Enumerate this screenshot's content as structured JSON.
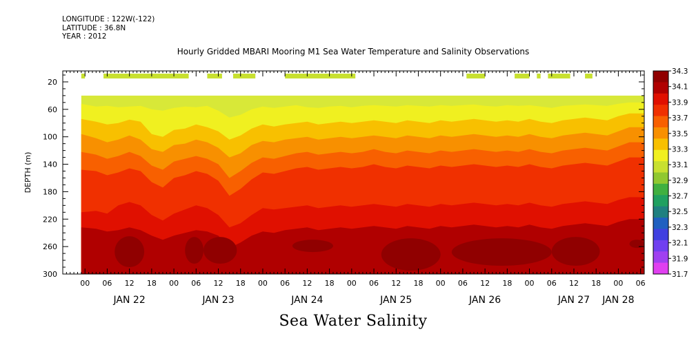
{
  "header": {
    "longitude": "LONGITUDE : 122W(-122)",
    "latitude": "LATITUDE : 36.8N",
    "year": "YEAR : 2012"
  },
  "chart_data": {
    "type": "heatmap",
    "title": "Hourly Gridded MBARI Mooring M1 Sea Water Temperature and Salinity Observations",
    "xlabel": "Sea Water Salinity",
    "ylabel": "DEPTH (m)",
    "x_range_hours": [
      -6,
      151
    ],
    "x_unit": "hours from 00 JAN 22 2012",
    "ylim": [
      300,
      4
    ],
    "y_ticks": [
      20,
      60,
      100,
      140,
      180,
      220,
      260,
      300
    ],
    "x_hour_labels": [
      "00",
      "06",
      "12",
      "18"
    ],
    "day_labels": [
      {
        "label": "JAN 22",
        "hour": 12
      },
      {
        "label": "JAN 23",
        "hour": 36
      },
      {
        "label": "JAN 24",
        "hour": 60
      },
      {
        "label": "JAN 25",
        "hour": 84
      },
      {
        "label": "JAN 26",
        "hour": 108
      },
      {
        "label": "JAN 27",
        "hour": 132
      },
      {
        "label": "JAN 28",
        "hour": 144
      }
    ],
    "colorbar": {
      "levels": [
        "31.7",
        "31.9",
        "32.1",
        "32.3",
        "32.5",
        "32.7",
        "32.9",
        "33.1",
        "33.3",
        "33.5",
        "33.7",
        "33.9",
        "34.1",
        "34.3"
      ],
      "colors": [
        "#e040f0",
        "#a040f0",
        "#7040f0",
        "#4040e0",
        "#2060c0",
        "#208080",
        "#20a060",
        "#40b040",
        "#90c830",
        "#c8e030",
        "#f0f020",
        "#f8c000",
        "#f89000",
        "#f86000",
        "#f03000",
        "#e01000",
        "#b00000",
        "#900000"
      ]
    },
    "surface_patches": [
      {
        "start": -1,
        "end": 0
      },
      {
        "start": 5,
        "end": 28
      },
      {
        "start": 33,
        "end": 37
      },
      {
        "start": 40,
        "end": 46
      },
      {
        "start": 54,
        "end": 73
      },
      {
        "start": 103,
        "end": 108
      },
      {
        "start": 116,
        "end": 120
      },
      {
        "start": 122,
        "end": 123
      },
      {
        "start": 125,
        "end": 131
      },
      {
        "start": 135,
        "end": 137
      }
    ],
    "surface_depth_range": [
      8,
      15
    ],
    "data_depth_range": [
      40,
      300
    ],
    "data_x_start_hour": -1,
    "band_series": [
      {
        "name": "33.3 top",
        "color": "#f0f020"
      },
      {
        "name": "33.5",
        "color": "#f8c000"
      },
      {
        "name": "33.7",
        "color": "#f89000"
      },
      {
        "name": "33.9",
        "color": "#f86000"
      },
      {
        "name": "34.1",
        "color": "#f03000"
      },
      {
        "name": "34.1b",
        "color": "#e01000"
      },
      {
        "name": "34.3",
        "color": "#b00000"
      }
    ],
    "band_knots_hours": [
      -1,
      3,
      6,
      9,
      12,
      15,
      18,
      21,
      24,
      27,
      30,
      33,
      36,
      39,
      42,
      45,
      48,
      51,
      54,
      57,
      60,
      63,
      66,
      69,
      72,
      75,
      78,
      81,
      84,
      87,
      90,
      93,
      96,
      99,
      102,
      105,
      108,
      111,
      114,
      117,
      120,
      123,
      126,
      129,
      132,
      135,
      138,
      141,
      144,
      147,
      151
    ],
    "band_depths": [
      [
        52,
        56,
        55,
        57,
        56,
        55,
        60,
        62,
        58,
        56,
        57,
        55,
        62,
        72,
        68,
        60,
        56,
        58,
        56,
        54,
        57,
        58,
        56,
        55,
        57,
        55,
        54,
        55,
        56,
        54,
        55,
        56,
        54,
        55,
        54,
        53,
        55,
        56,
        54,
        55,
        54,
        56,
        58,
        55,
        54,
        53,
        54,
        55,
        52,
        50,
        50
      ],
      [
        74,
        78,
        82,
        80,
        75,
        78,
        96,
        100,
        90,
        88,
        82,
        86,
        92,
        104,
        98,
        88,
        82,
        85,
        82,
        80,
        78,
        82,
        80,
        78,
        80,
        78,
        76,
        78,
        80,
        76,
        78,
        80,
        76,
        78,
        76,
        74,
        76,
        78,
        76,
        78,
        74,
        78,
        80,
        76,
        74,
        72,
        74,
        76,
        70,
        66,
        66
      ],
      [
        96,
        102,
        108,
        104,
        98,
        104,
        118,
        122,
        112,
        110,
        104,
        108,
        116,
        130,
        124,
        112,
        106,
        108,
        104,
        102,
        100,
        104,
        102,
        100,
        102,
        100,
        98,
        100,
        102,
        98,
        100,
        102,
        98,
        100,
        98,
        96,
        98,
        100,
        98,
        100,
        96,
        100,
        102,
        98,
        96,
        94,
        96,
        98,
        92,
        86,
        86
      ],
      [
        122,
        126,
        132,
        128,
        122,
        128,
        142,
        148,
        136,
        132,
        128,
        132,
        140,
        160,
        150,
        138,
        130,
        132,
        128,
        124,
        122,
        126,
        124,
        122,
        124,
        122,
        118,
        122,
        124,
        120,
        122,
        124,
        120,
        122,
        120,
        118,
        120,
        122,
        120,
        122,
        118,
        122,
        124,
        120,
        118,
        116,
        118,
        120,
        114,
        108,
        108
      ],
      [
        148,
        150,
        156,
        152,
        146,
        150,
        166,
        174,
        160,
        156,
        150,
        154,
        164,
        186,
        176,
        162,
        152,
        154,
        150,
        146,
        144,
        148,
        146,
        144,
        146,
        144,
        140,
        144,
        146,
        142,
        144,
        146,
        142,
        144,
        142,
        140,
        142,
        144,
        142,
        144,
        140,
        144,
        146,
        142,
        140,
        138,
        140,
        142,
        136,
        130,
        130
      ],
      [
        210,
        208,
        212,
        200,
        195,
        200,
        214,
        222,
        212,
        206,
        200,
        204,
        214,
        232,
        226,
        214,
        204,
        206,
        204,
        202,
        200,
        204,
        202,
        200,
        202,
        200,
        198,
        200,
        202,
        198,
        200,
        202,
        198,
        200,
        198,
        196,
        198,
        200,
        198,
        200,
        196,
        200,
        202,
        198,
        196,
        194,
        196,
        198,
        192,
        188,
        188
      ],
      [
        232,
        234,
        238,
        236,
        232,
        236,
        244,
        250,
        244,
        240,
        236,
        238,
        244,
        262,
        254,
        244,
        238,
        240,
        236,
        234,
        232,
        236,
        234,
        232,
        234,
        232,
        230,
        232,
        234,
        230,
        232,
        234,
        230,
        232,
        230,
        228,
        230,
        232,
        230,
        232,
        228,
        232,
        234,
        230,
        228,
        226,
        228,
        230,
        224,
        220,
        220
      ]
    ],
    "deep_blobs": [
      {
        "h0": 8,
        "h1": 16,
        "d0": 245,
        "d1": 290
      },
      {
        "h0": 27,
        "h1": 32,
        "d0": 246,
        "d1": 285
      },
      {
        "h0": 32,
        "h1": 41,
        "d0": 246,
        "d1": 285
      },
      {
        "h0": 56,
        "h1": 67,
        "d0": 250,
        "d1": 268
      },
      {
        "h0": 80,
        "h1": 96,
        "d0": 248,
        "d1": 295
      },
      {
        "h0": 99,
        "h1": 126,
        "d0": 248,
        "d1": 288
      },
      {
        "h0": 126,
        "h1": 139,
        "d0": 246,
        "d1": 288
      },
      {
        "h0": 147,
        "h1": 151,
        "d0": 250,
        "d1": 262
      }
    ]
  }
}
